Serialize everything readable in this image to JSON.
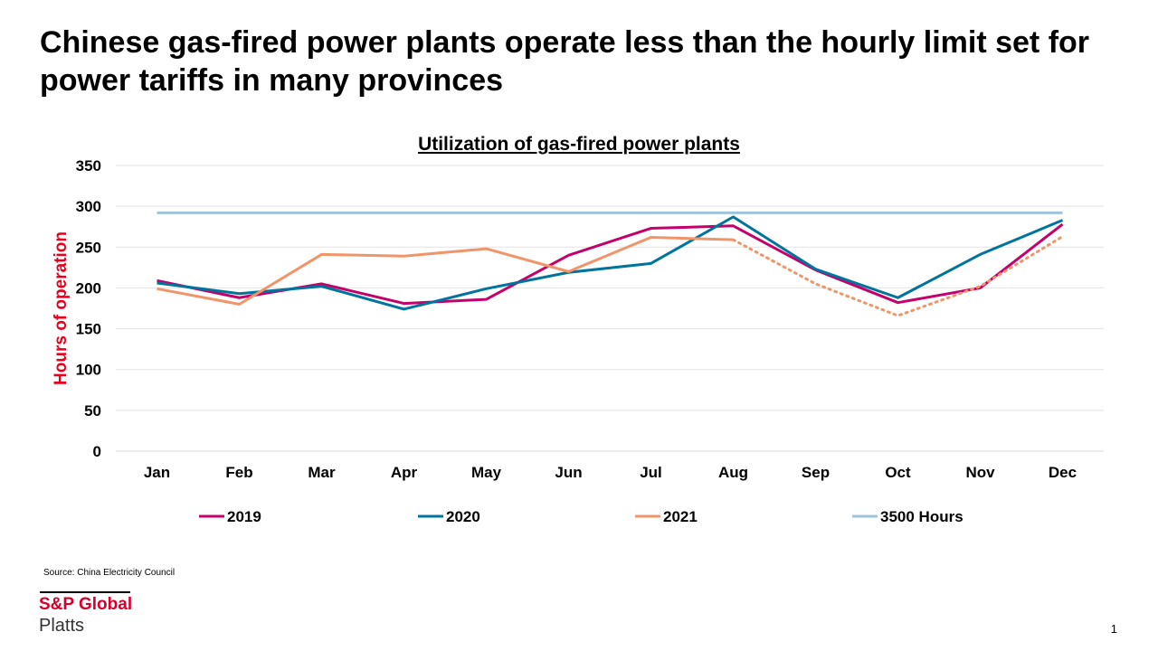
{
  "slide": {
    "headline": "Chinese gas-fired power plants operate less than the hourly limit set for power tariffs in many provinces",
    "source": "Source: China Electricity Council",
    "logo_line1": "S&P Global",
    "logo_line2": "Platts",
    "page_number": "1"
  },
  "chart_data": {
    "type": "line",
    "title": "Utilization of gas-fired power plants",
    "ylabel": "Hours of operation",
    "xlabel": "",
    "ylim": [
      0,
      350
    ],
    "yticks": [
      0,
      50,
      100,
      150,
      200,
      250,
      300,
      350
    ],
    "grid": true,
    "legend": "bottom",
    "categories": [
      "Jan",
      "Feb",
      "Mar",
      "Apr",
      "May",
      "Jun",
      "Jul",
      "Aug",
      "Sep",
      "Oct",
      "Nov",
      "Dec"
    ],
    "series": [
      {
        "name": "2019",
        "color": "#c4006b",
        "values": [
          209,
          188,
          205,
          181,
          186,
          240,
          273,
          276,
          222,
          182,
          200,
          278
        ]
      },
      {
        "name": "2020",
        "color": "#00749d",
        "values": [
          206,
          193,
          202,
          174,
          199,
          219,
          230,
          287,
          223,
          188,
          241,
          283
        ]
      },
      {
        "name": "2021",
        "color": "#f0956a",
        "values": [
          199,
          180,
          241,
          239,
          248,
          220,
          262,
          259,
          205,
          166,
          202,
          263
        ],
        "solid_through_index": 7,
        "dotted_after_index": 7
      },
      {
        "name": "3500 Hours",
        "color": "#a0c3dd",
        "values": [
          292,
          292,
          292,
          292,
          292,
          292,
          292,
          292,
          292,
          292,
          292,
          292
        ]
      }
    ]
  }
}
